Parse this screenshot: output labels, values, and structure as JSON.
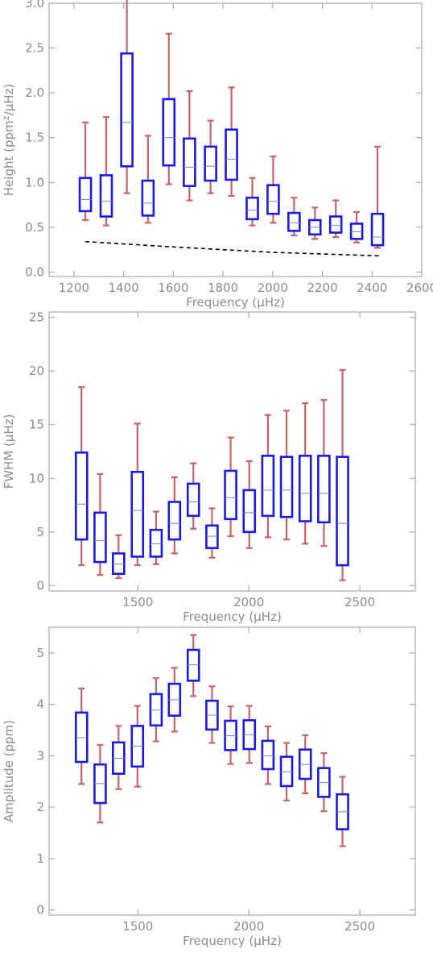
{
  "chart_data": [
    {
      "type": "box",
      "xlabel": "Frequency (μHz)",
      "ylabel": "Height (ppm²/μHz)",
      "xlim": [
        1100,
        2600
      ],
      "ylim": [
        -0.05,
        3.0
      ],
      "xticks": [
        1200,
        1400,
        1600,
        1800,
        2000,
        2200,
        2400,
        2600
      ],
      "yticks": [
        0.0,
        0.5,
        1.0,
        1.5,
        2.0,
        2.5,
        3.0
      ],
      "ytick_labels": [
        "0.0",
        "0.5",
        "1.0",
        "1.5",
        "2.0",
        "2.5",
        "3.0"
      ],
      "boxes": [
        {
          "x": 1246,
          "low": 0.58,
          "q1": 0.68,
          "median": 0.81,
          "q3": 1.05,
          "high": 1.67
        },
        {
          "x": 1330,
          "low": 0.52,
          "q1": 0.62,
          "median": 0.79,
          "q3": 1.08,
          "high": 1.73
        },
        {
          "x": 1413,
          "low": 0.88,
          "q1": 1.18,
          "median": 1.67,
          "q3": 2.44,
          "high": 3.05
        },
        {
          "x": 1498,
          "low": 0.55,
          "q1": 0.63,
          "median": 0.77,
          "q3": 1.02,
          "high": 1.52
        },
        {
          "x": 1582,
          "low": 0.98,
          "q1": 1.19,
          "median": 1.5,
          "q3": 1.93,
          "high": 2.66
        },
        {
          "x": 1665,
          "low": 0.8,
          "q1": 0.96,
          "median": 1.17,
          "q3": 1.49,
          "high": 2.02
        },
        {
          "x": 1750,
          "low": 0.88,
          "q1": 1.02,
          "median": 1.18,
          "q3": 1.4,
          "high": 1.69
        },
        {
          "x": 1834,
          "low": 0.85,
          "q1": 1.03,
          "median": 1.26,
          "q3": 1.59,
          "high": 2.06
        },
        {
          "x": 1918,
          "low": 0.52,
          "q1": 0.59,
          "median": 0.69,
          "q3": 0.83,
          "high": 1.05
        },
        {
          "x": 2002,
          "low": 0.55,
          "q1": 0.65,
          "median": 0.79,
          "q3": 0.97,
          "high": 1.29
        },
        {
          "x": 2086,
          "low": 0.41,
          "q1": 0.46,
          "median": 0.55,
          "q3": 0.66,
          "high": 0.83
        },
        {
          "x": 2170,
          "low": 0.37,
          "q1": 0.42,
          "median": 0.5,
          "q3": 0.58,
          "high": 0.72
        },
        {
          "x": 2254,
          "low": 0.39,
          "q1": 0.44,
          "median": 0.52,
          "q3": 0.62,
          "high": 0.8
        },
        {
          "x": 2338,
          "low": 0.33,
          "q1": 0.37,
          "median": 0.45,
          "q3": 0.54,
          "high": 0.67
        },
        {
          "x": 2422,
          "low": 0.27,
          "q1": 0.3,
          "median": 0.39,
          "q3": 0.65,
          "high": 1.4
        }
      ],
      "reference_line": {
        "x": [
          1246,
          1600,
          2000,
          2440
        ],
        "y": [
          0.34,
          0.28,
          0.22,
          0.18
        ]
      }
    },
    {
      "type": "box",
      "xlabel": "Frequency (μHz)",
      "ylabel": "FWHM (μHz)",
      "xlim": [
        1100,
        2750
      ],
      "ylim": [
        -0.5,
        25.5
      ],
      "xticks": [
        1500,
        2000,
        2500
      ],
      "yticks": [
        0,
        5,
        10,
        15,
        20,
        25
      ],
      "ytick_labels": [
        "0",
        "5",
        "10",
        "15",
        "20",
        "25"
      ],
      "boxes": [
        {
          "x": 1246,
          "low": 1.9,
          "q1": 4.3,
          "median": 7.6,
          "q3": 12.4,
          "high": 18.5
        },
        {
          "x": 1330,
          "low": 1.0,
          "q1": 2.2,
          "median": 4.2,
          "q3": 6.8,
          "high": 10.4
        },
        {
          "x": 1413,
          "low": 0.7,
          "q1": 1.1,
          "median": 2.0,
          "q3": 3.0,
          "high": 4.7
        },
        {
          "x": 1498,
          "low": 1.9,
          "q1": 2.7,
          "median": 7.0,
          "q3": 10.6,
          "high": 15.1
        },
        {
          "x": 1582,
          "low": 2.0,
          "q1": 2.7,
          "median": 3.9,
          "q3": 5.2,
          "high": 6.9
        },
        {
          "x": 1665,
          "low": 3.0,
          "q1": 4.3,
          "median": 5.8,
          "q3": 7.8,
          "high": 10.1
        },
        {
          "x": 1750,
          "low": 5.3,
          "q1": 6.5,
          "median": 7.8,
          "q3": 9.5,
          "high": 11.4
        },
        {
          "x": 1834,
          "low": 2.6,
          "q1": 3.5,
          "median": 4.6,
          "q3": 5.6,
          "high": 7.2
        },
        {
          "x": 1918,
          "low": 4.6,
          "q1": 6.2,
          "median": 8.2,
          "q3": 10.7,
          "high": 13.8
        },
        {
          "x": 2002,
          "low": 3.5,
          "q1": 5.0,
          "median": 6.8,
          "q3": 8.9,
          "high": 11.6
        },
        {
          "x": 2086,
          "low": 4.5,
          "q1": 6.5,
          "median": 8.9,
          "q3": 12.1,
          "high": 15.9
        },
        {
          "x": 2170,
          "low": 4.3,
          "q1": 6.4,
          "median": 8.9,
          "q3": 12.0,
          "high": 16.3
        },
        {
          "x": 2254,
          "low": 3.9,
          "q1": 6.0,
          "median": 8.6,
          "q3": 12.1,
          "high": 17.0
        },
        {
          "x": 2338,
          "low": 3.7,
          "q1": 5.9,
          "median": 8.6,
          "q3": 12.1,
          "high": 17.3
        },
        {
          "x": 2422,
          "low": 0.5,
          "q1": 1.9,
          "median": 5.8,
          "q3": 12.0,
          "high": 20.1
        }
      ]
    },
    {
      "type": "box",
      "xlabel": "Frequency (μHz)",
      "ylabel": "Amplitude (ppm)",
      "xlim": [
        1100,
        2750
      ],
      "ylim": [
        -0.1,
        5.5
      ],
      "xticks": [
        1500,
        2000,
        2500
      ],
      "yticks": [
        0,
        1,
        2,
        3,
        4,
        5
      ],
      "ytick_labels": [
        "0",
        "1",
        "2",
        "3",
        "4",
        "5"
      ],
      "boxes": [
        {
          "x": 1246,
          "low": 2.45,
          "q1": 2.88,
          "median": 3.35,
          "q3": 3.84,
          "high": 4.31
        },
        {
          "x": 1330,
          "low": 1.7,
          "q1": 2.08,
          "median": 2.46,
          "q3": 2.83,
          "high": 3.21
        },
        {
          "x": 1413,
          "low": 2.35,
          "q1": 2.65,
          "median": 2.95,
          "q3": 3.26,
          "high": 3.58
        },
        {
          "x": 1498,
          "low": 2.4,
          "q1": 2.79,
          "median": 3.19,
          "q3": 3.58,
          "high": 3.97
        },
        {
          "x": 1582,
          "low": 3.28,
          "q1": 3.59,
          "median": 3.89,
          "q3": 4.2,
          "high": 4.51
        },
        {
          "x": 1665,
          "low": 3.47,
          "q1": 3.78,
          "median": 4.09,
          "q3": 4.4,
          "high": 4.71
        },
        {
          "x": 1750,
          "low": 4.16,
          "q1": 4.46,
          "median": 4.77,
          "q3": 5.06,
          "high": 5.35
        },
        {
          "x": 1834,
          "low": 3.25,
          "q1": 3.51,
          "median": 3.79,
          "q3": 4.07,
          "high": 4.35
        },
        {
          "x": 1918,
          "low": 2.84,
          "q1": 3.11,
          "median": 3.39,
          "q3": 3.68,
          "high": 3.96
        },
        {
          "x": 2002,
          "low": 2.86,
          "q1": 3.13,
          "median": 3.41,
          "q3": 3.69,
          "high": 3.97
        },
        {
          "x": 2086,
          "low": 2.45,
          "q1": 2.74,
          "median": 3.0,
          "q3": 3.29,
          "high": 3.57
        },
        {
          "x": 2170,
          "low": 2.13,
          "q1": 2.41,
          "median": 2.69,
          "q3": 2.98,
          "high": 3.25
        },
        {
          "x": 2254,
          "low": 2.27,
          "q1": 2.55,
          "median": 2.83,
          "q3": 3.12,
          "high": 3.4
        },
        {
          "x": 2338,
          "low": 1.92,
          "q1": 2.2,
          "median": 2.48,
          "q3": 2.76,
          "high": 3.05
        },
        {
          "x": 2422,
          "low": 1.24,
          "q1": 1.57,
          "median": 1.91,
          "q3": 2.25,
          "high": 2.59
        }
      ]
    }
  ]
}
